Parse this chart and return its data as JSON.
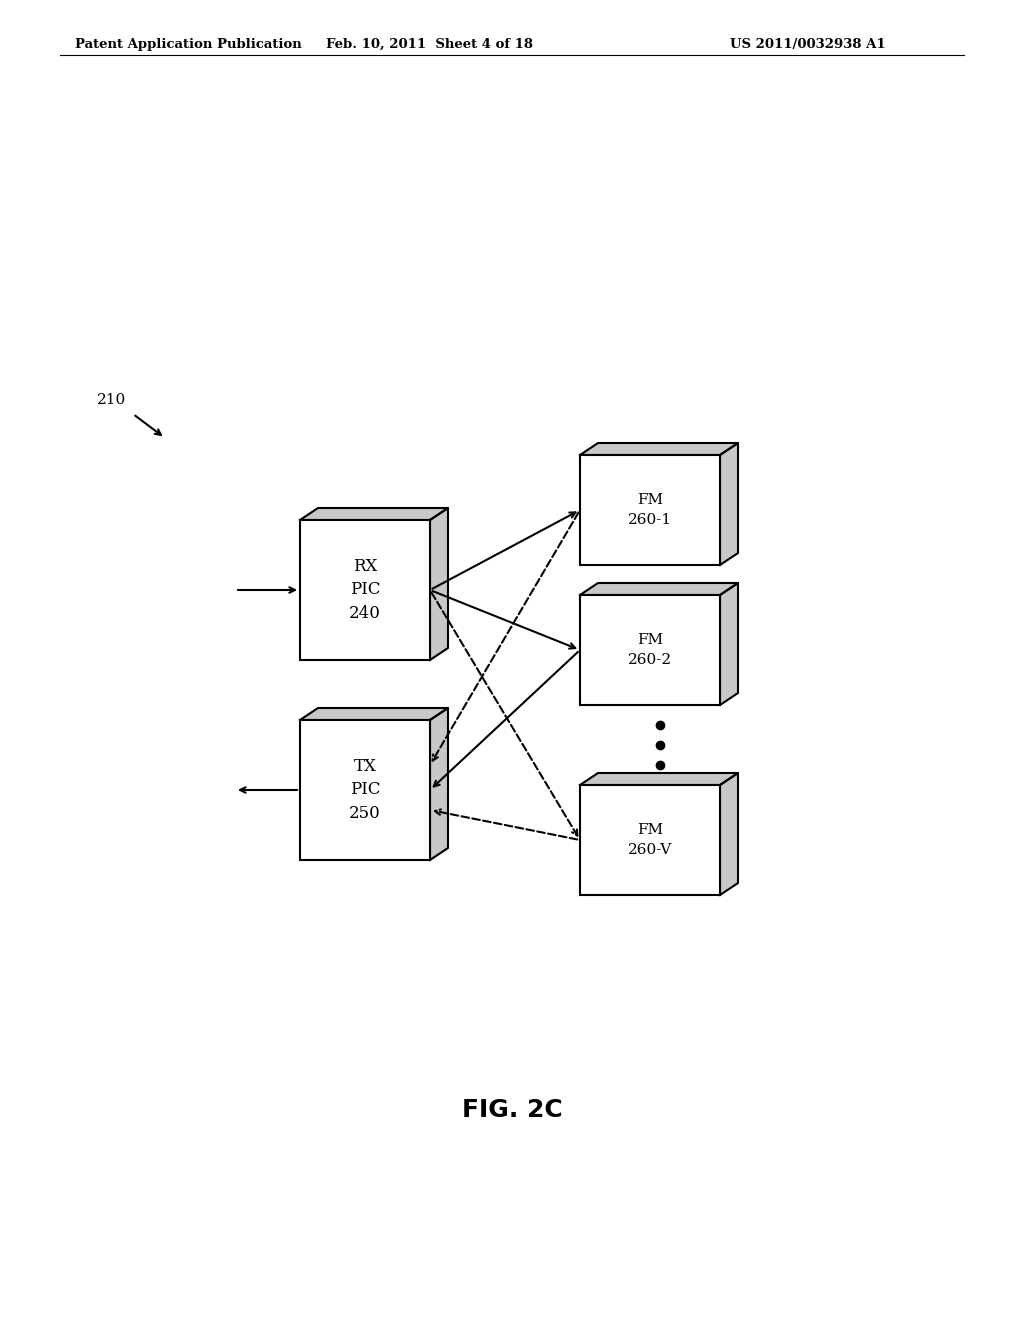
{
  "bg_color": "#ffffff",
  "header_left": "Patent Application Publication",
  "header_mid": "Feb. 10, 2011  Sheet 4 of 18",
  "header_right": "US 2011/0032938 A1",
  "label_210": "210",
  "fig_label": "FIG. 2C",
  "box_rx_label": "RX\nPIC\n240",
  "box_tx_label": "TX\nPIC\n250",
  "box_fm1_label": "FM\n260-1",
  "box_fm2_label": "FM\n260-2",
  "box_fmv_label": "FM\n260-V",
  "box_face_color": "#ffffff",
  "box_edge_color": "#000000",
  "box_top_color": "#c8c8c8"
}
